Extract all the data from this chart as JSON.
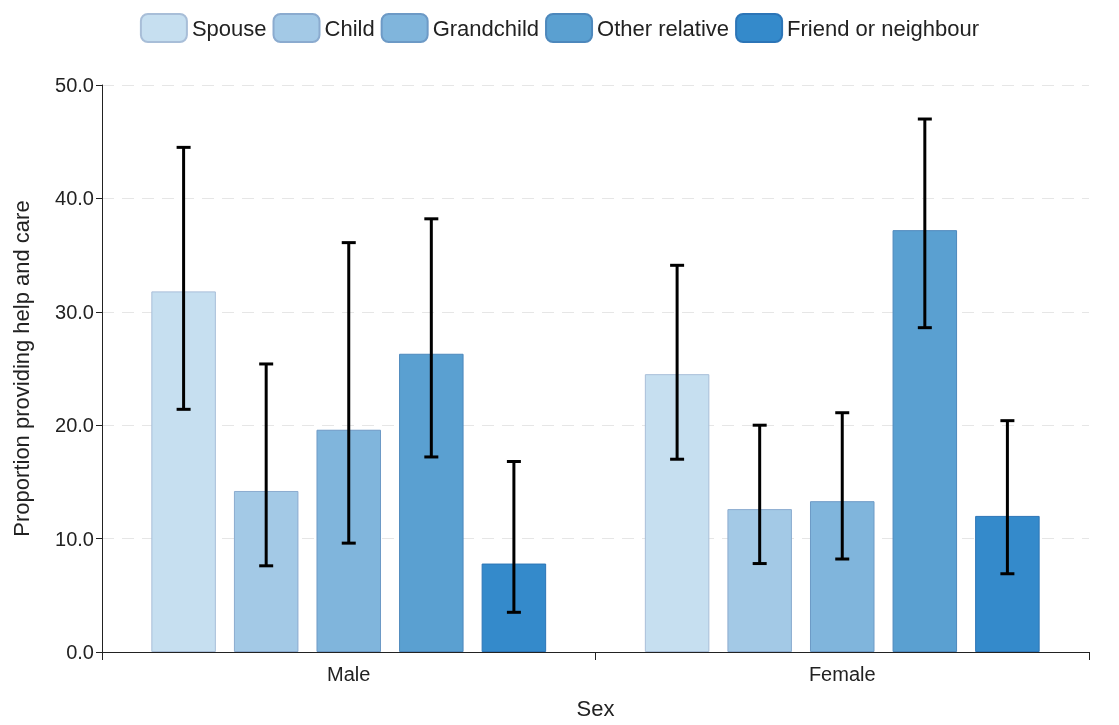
{
  "chart_data": {
    "type": "bar",
    "xlabel": "Sex",
    "ylabel": "Proportion providing help and care",
    "categories": [
      "Male",
      "Female"
    ],
    "series": [
      {
        "name": "Spouse",
        "color": "#c6dff0",
        "values": [
          31.8,
          24.5
        ],
        "errors": [
          [
            21.4,
            44.5
          ],
          [
            17.0,
            34.1
          ]
        ]
      },
      {
        "name": "Child",
        "color": "#a3c9e6",
        "values": [
          14.2,
          12.6
        ],
        "errors": [
          [
            7.6,
            25.4
          ],
          [
            7.8,
            20.0
          ]
        ]
      },
      {
        "name": "Grandchild",
        "color": "#80b5dc",
        "values": [
          19.6,
          13.3
        ],
        "errors": [
          [
            9.6,
            36.1
          ],
          [
            8.2,
            21.1
          ]
        ]
      },
      {
        "name": "Other relative",
        "color": "#5aa0d1",
        "values": [
          26.3,
          37.2
        ],
        "errors": [
          [
            17.2,
            38.2
          ],
          [
            28.6,
            47.0
          ]
        ]
      },
      {
        "name": "Friend or neighbour",
        "color": "#348acb",
        "values": [
          7.8,
          12.0
        ],
        "errors": [
          [
            3.5,
            16.8
          ],
          [
            6.9,
            20.4
          ]
        ]
      }
    ],
    "ylim": [
      0,
      50
    ],
    "yticks": [
      {
        "value": 0,
        "label": "0.0"
      },
      {
        "value": 10,
        "label": "10.0"
      },
      {
        "value": 20,
        "label": "20.0"
      },
      {
        "value": 30,
        "label": "30.0"
      },
      {
        "value": 40,
        "label": "40.0"
      },
      {
        "value": 50,
        "label": "50.0"
      }
    ],
    "grid": "y",
    "legend": "top"
  }
}
